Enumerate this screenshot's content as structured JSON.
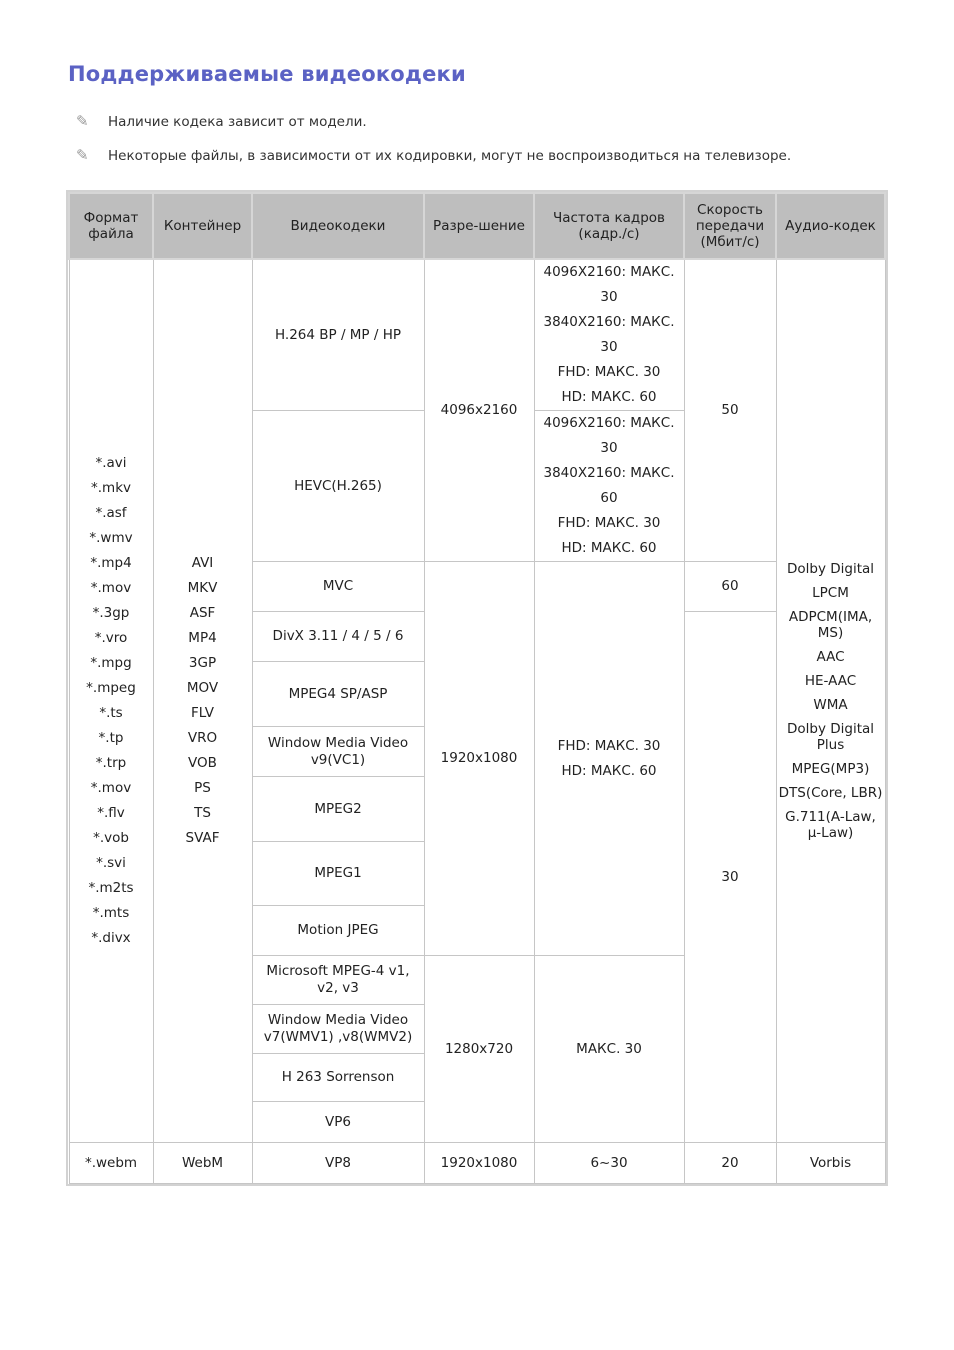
{
  "title": "Поддерживаемые видеокодеки",
  "notes": [
    "Наличие кодека зависит от модели.",
    "Некоторые файлы, в зависимости от их кодировки, могут не воспроизводиться на телевизоре."
  ],
  "note_icon": "pencil-icon",
  "headers": [
    "Формат файла",
    "Контейнер",
    "Видеокодеки",
    "Разре-шение",
    "Частота кадров (кадр./с)",
    "Скорость передачи (Мбит/с)",
    "Аудио-кодек"
  ],
  "file_formats": [
    "*.avi",
    "*.mkv",
    "*.asf",
    "*.wmv",
    "*.mp4",
    "*.mov",
    "*.3gp",
    "*.vro",
    "*.mpg",
    "*.mpeg",
    "*.ts",
    "*.tp",
    "*.trp",
    "*.mov",
    "*.flv",
    "*.vob",
    "*.svi",
    "*.m2ts",
    "*.mts",
    "*.divx"
  ],
  "containers": [
    "AVI",
    "MKV",
    "ASF",
    "MP4",
    "3GP",
    "MOV",
    "FLV",
    "VRO",
    "VOB",
    "PS",
    "TS",
    "SVAF"
  ],
  "codecs": [
    "H.264 BP / MP / HP",
    "HEVC(H.265)",
    "MVC",
    "DivX 3.11 / 4 / 5 / 6",
    "MPEG4 SP/ASP",
    "Window Media Video v9(VC1)",
    "MPEG2",
    "MPEG1",
    "Motion JPEG",
    "Microsoft MPEG-4 v1, v2, v3",
    "Window Media Video v7(WMV1) ,v8(WMV2)",
    "H 263 Sorrenson",
    "VP6"
  ],
  "resolutions": [
    "4096x2160",
    "1920x1080",
    "1280x720"
  ],
  "framerates": {
    "h264": [
      "4096X2160: МАКС. 30",
      "3840X2160: МАКС. 30",
      "FHD: МАКС. 30",
      "HD: МАКС. 60"
    ],
    "hevc": [
      "4096X2160: МАКС. 30",
      "3840X2160: МАКС. 60",
      "FHD: МАКС. 30",
      "HD: МАКС. 60"
    ],
    "fhd": [
      "FHD: МАКС. 30",
      "HD: МАКС. 60"
    ],
    "hd": "МАКС. 30"
  },
  "bitrates": [
    "50",
    "60",
    "30"
  ],
  "audio": [
    "Dolby Digital",
    "LPCM",
    "ADPCM(IMA, MS)",
    "AAC",
    "HE-AAC",
    "WMA",
    "Dolby Digital Plus",
    "MPEG(MP3)",
    "DTS(Core, LBR)",
    "G.711(A-Law, μ-Law)"
  ],
  "webm": {
    "format": "*.webm",
    "container": "WebM",
    "codec": "VP8",
    "resolution": "1920x1080",
    "framerate": "6~30",
    "bitrate": "20",
    "audio": "Vorbis"
  }
}
